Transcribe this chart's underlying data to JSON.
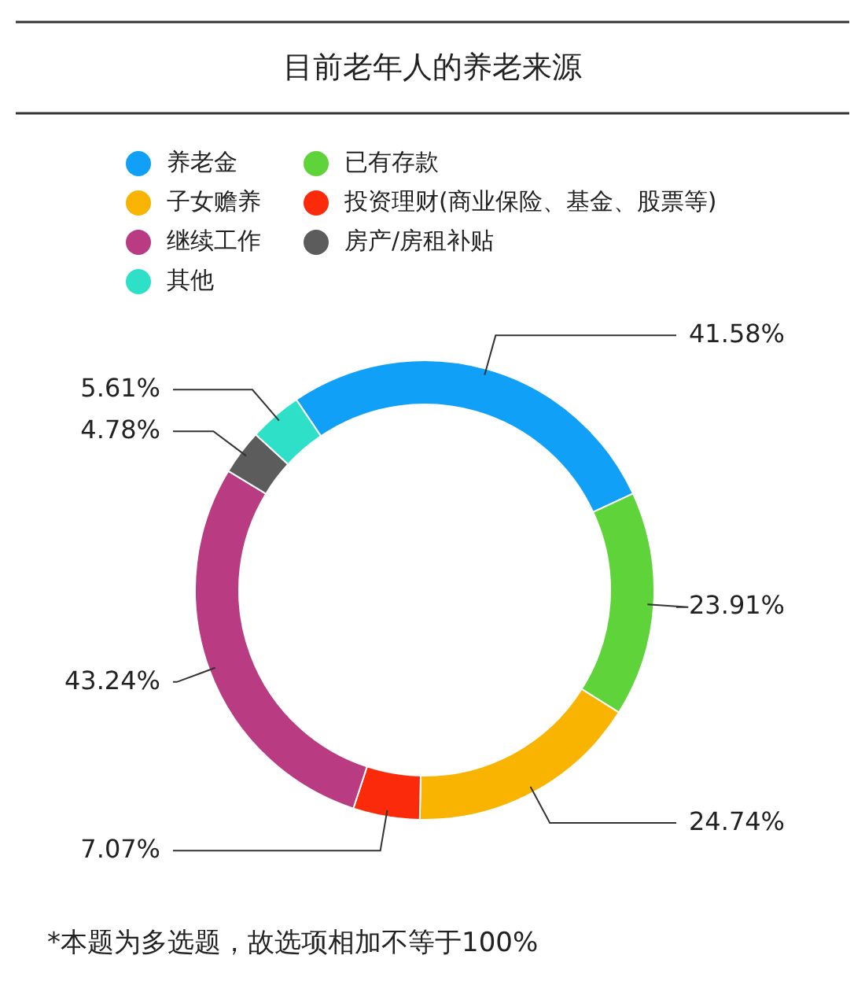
{
  "chart_data": {
    "type": "donut",
    "title": "目前老年人的养老来源",
    "categories": [
      "养老金",
      "已有存款",
      "子女赡养",
      "投资理财(商业保险、基金、股票等)",
      "继续工作",
      "房产/房租补贴",
      "其他"
    ],
    "values": [
      41.58,
      23.91,
      24.74,
      7.07,
      43.24,
      4.78,
      5.61
    ],
    "colors": [
      "#10a0f8",
      "#5fd33a",
      "#f8b400",
      "#fa2a0a",
      "#b93c82",
      "#5c5c5c",
      "#2ee0c8"
    ],
    "value_labels": [
      "41.58%",
      "23.91%",
      "24.74%",
      "7.07%",
      "43.24%",
      "4.78%",
      "5.61%"
    ],
    "legend": "top left",
    "annotations": [
      "*本题为多选题，故选项相加不等于100%"
    ]
  }
}
